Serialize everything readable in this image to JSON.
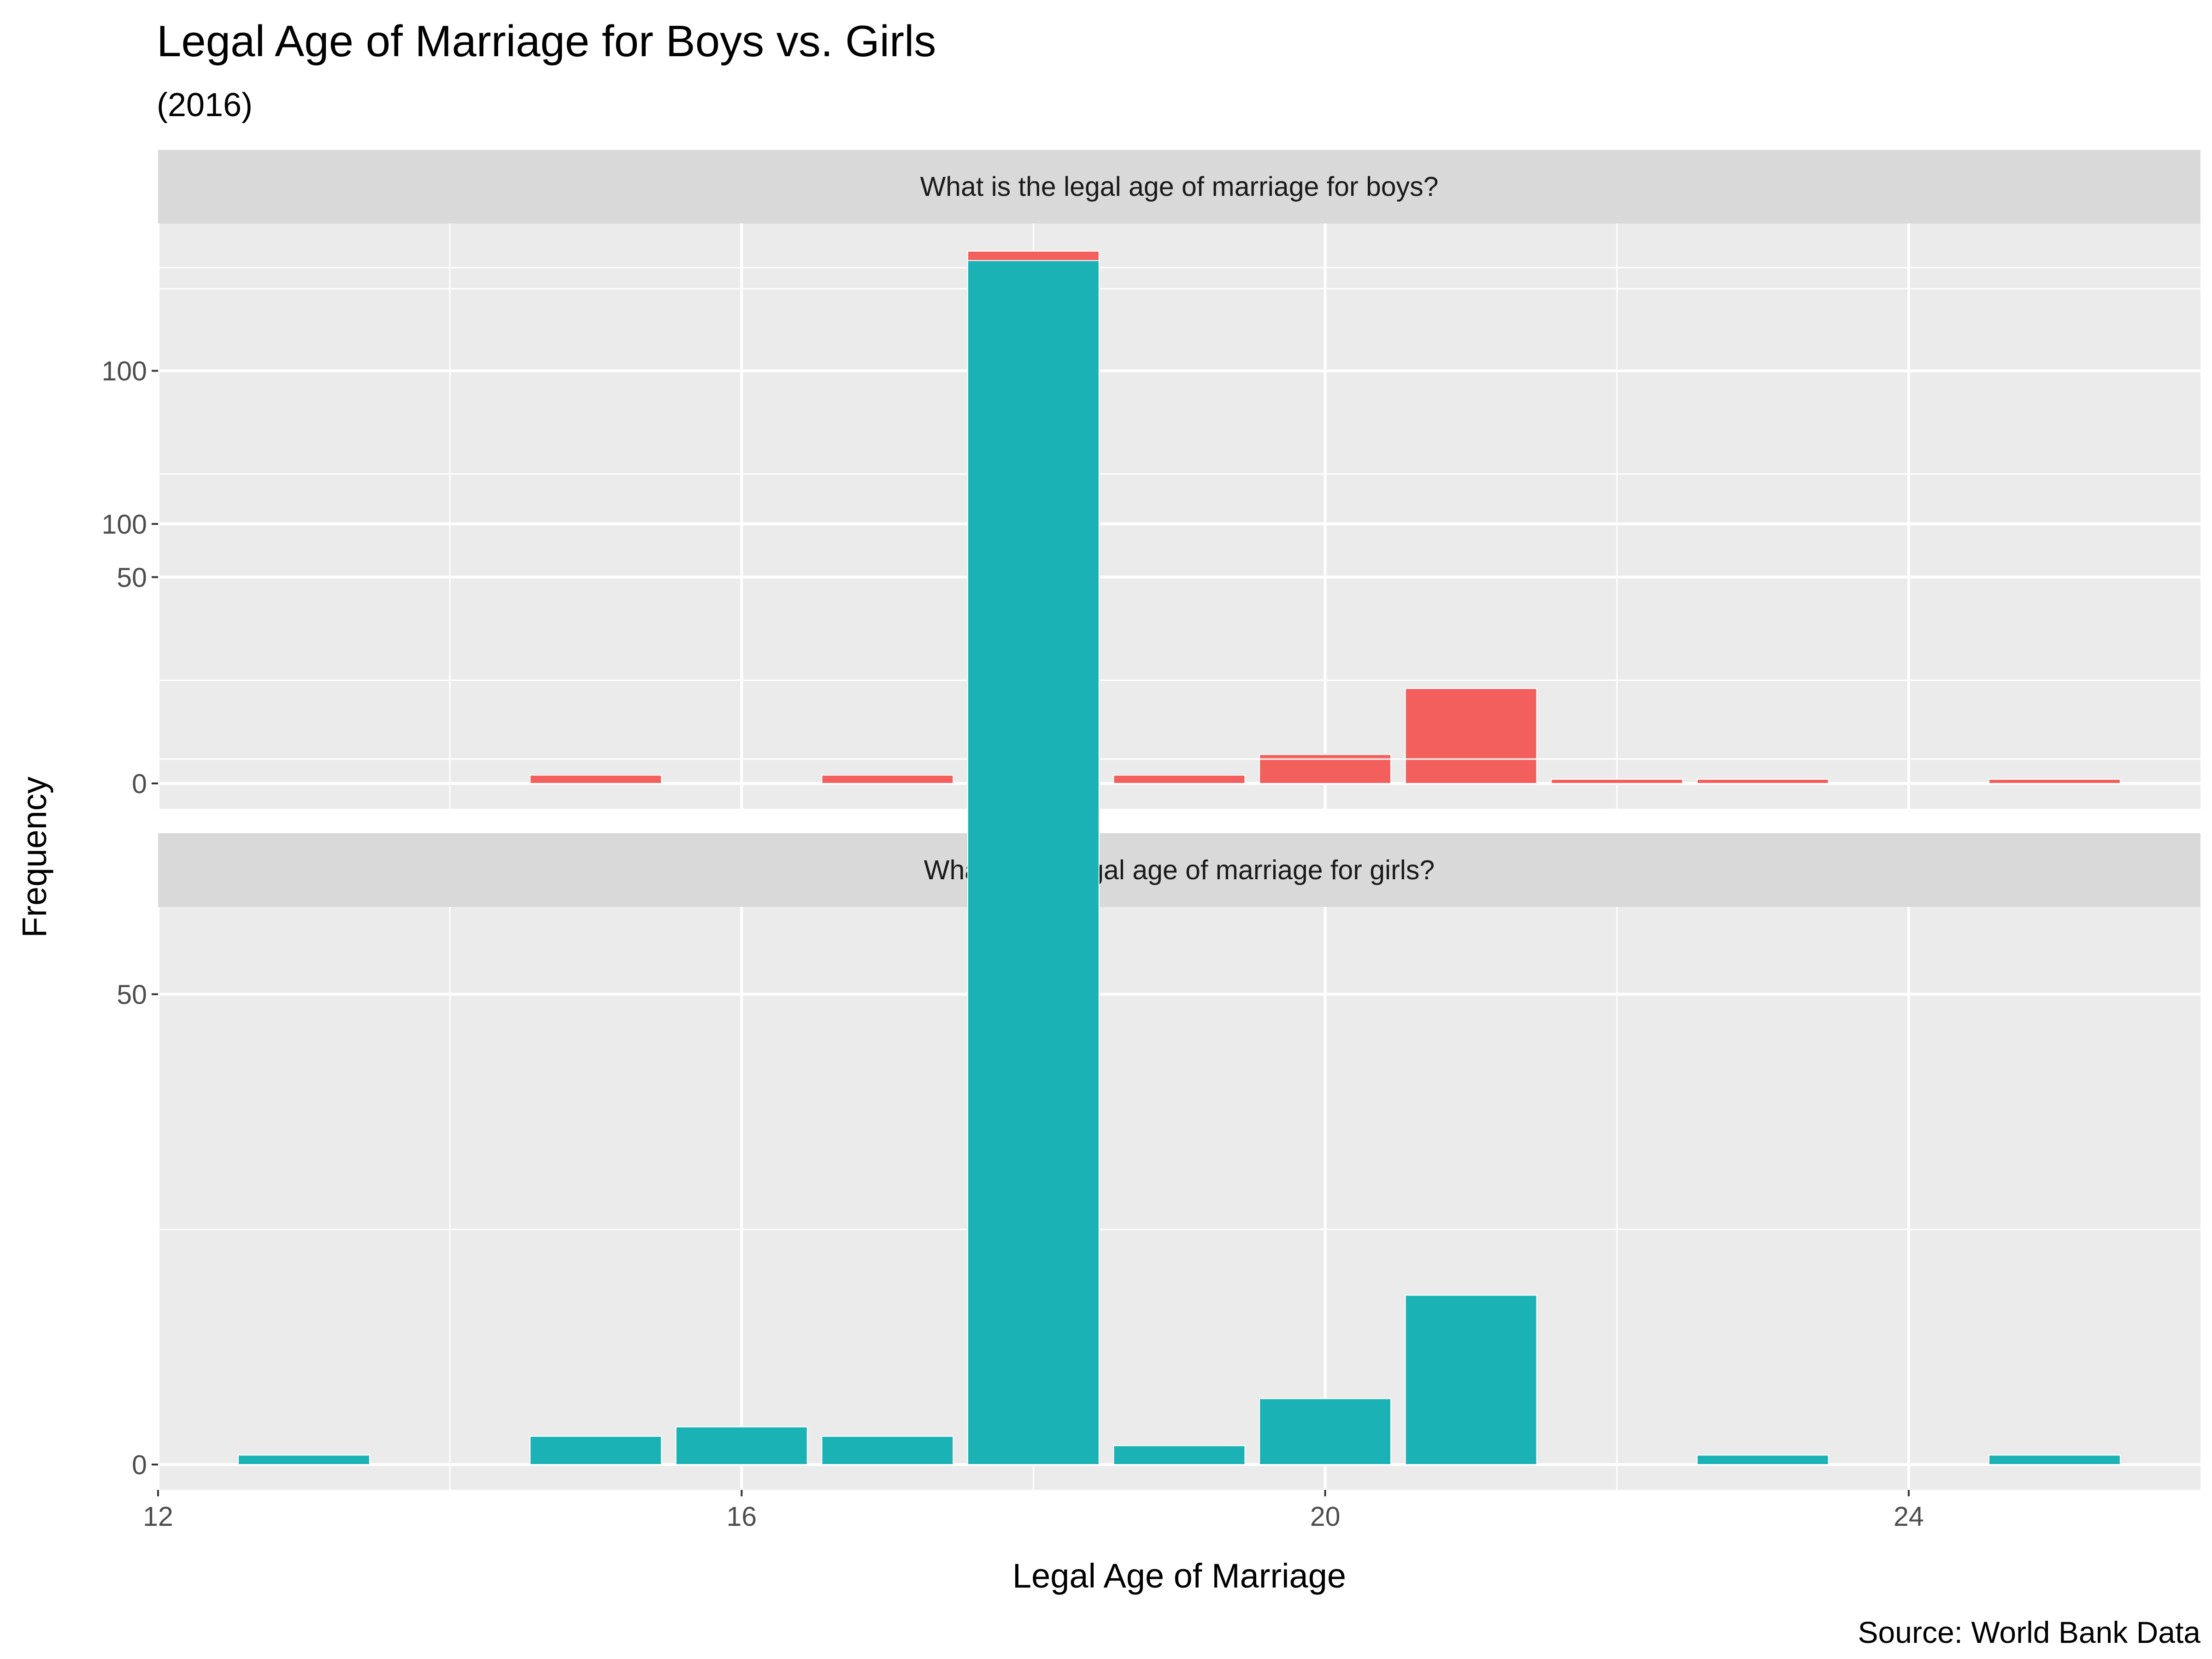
{
  "chart_data": {
    "type": "bar",
    "title": "Legal Age of Marriage for Boys vs. Girls",
    "subtitle": "(2016)",
    "xlabel": "Legal Age of Marriage",
    "ylabel": "Frequency",
    "caption": "Source: World Bank Data",
    "xlim": [
      12,
      26
    ],
    "ylim": [
      0,
      135
    ],
    "x_ticks": [
      12,
      16,
      20,
      24
    ],
    "y_ticks": [
      0,
      50,
      100
    ],
    "grid": true,
    "legend": "none",
    "panels": [
      {
        "label": "What is the legal age of marriage for boys?",
        "color": "#F25F5C",
        "x": [
          15,
          17,
          18,
          19,
          20,
          21,
          22,
          23,
          25
        ],
        "values": [
          2,
          2,
          129,
          2,
          7,
          23,
          1,
          1,
          1
        ]
      },
      {
        "label": "What is the legal age of marriage for girls?",
        "color": "#1AB2B5",
        "x": [
          13,
          15,
          16,
          17,
          18,
          19,
          20,
          21,
          23,
          25
        ],
        "values": [
          1,
          3,
          4,
          3,
          128,
          2,
          7,
          18,
          1,
          1
        ]
      }
    ]
  }
}
